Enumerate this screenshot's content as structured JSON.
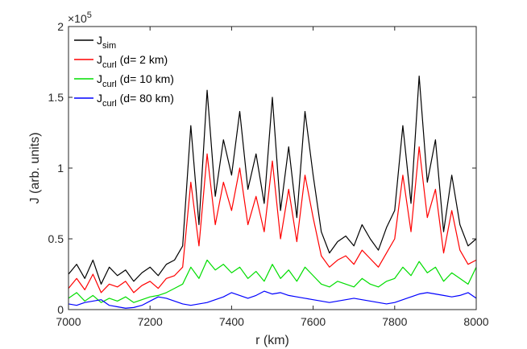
{
  "chart_data": {
    "type": "line",
    "title": "",
    "xlabel": "r (km)",
    "ylabel": "J (arb. units)",
    "xlim": [
      7000,
      8000
    ],
    "ylim": [
      0,
      200000
    ],
    "y_multiplier_label": "×10",
    "y_multiplier_exp": "5",
    "xticks": [
      7000,
      7200,
      7400,
      7600,
      7800,
      8000
    ],
    "xtick_labels": [
      "7000",
      "7200",
      "7400",
      "7600",
      "7800",
      "8000"
    ],
    "yticks": [
      0,
      50000,
      100000,
      150000,
      200000
    ],
    "ytick_labels": [
      "0",
      "0.5",
      "1",
      "1.5",
      "2"
    ],
    "grid": false,
    "legend_position": "top-left",
    "x": [
      7000,
      7020,
      7040,
      7060,
      7080,
      7100,
      7120,
      7140,
      7160,
      7180,
      7200,
      7220,
      7240,
      7260,
      7280,
      7300,
      7320,
      7340,
      7360,
      7380,
      7400,
      7420,
      7440,
      7460,
      7480,
      7500,
      7520,
      7540,
      7560,
      7580,
      7600,
      7620,
      7640,
      7660,
      7680,
      7700,
      7720,
      7740,
      7760,
      7780,
      7800,
      7820,
      7840,
      7860,
      7880,
      7900,
      7920,
      7940,
      7960,
      7980,
      8000
    ],
    "series": [
      {
        "name": "sim",
        "legend_main": "J",
        "legend_sub": "sim",
        "legend_tail": "",
        "color": "#000000",
        "values": [
          25000,
          32000,
          22000,
          35000,
          18000,
          30000,
          24000,
          28000,
          20000,
          26000,
          30000,
          24000,
          32000,
          35000,
          45000,
          130000,
          60000,
          155000,
          80000,
          120000,
          95000,
          140000,
          85000,
          110000,
          75000,
          150000,
          70000,
          115000,
          65000,
          140000,
          95000,
          55000,
          40000,
          48000,
          52000,
          45000,
          60000,
          50000,
          42000,
          58000,
          70000,
          130000,
          75000,
          165000,
          90000,
          120000,
          55000,
          95000,
          60000,
          45000,
          50000
        ]
      },
      {
        "name": "curl d=2 km",
        "legend_main": "J",
        "legend_sub": "curl",
        "legend_tail": " (d= 2 km)",
        "color": "#ff0000",
        "values": [
          15000,
          22000,
          14000,
          25000,
          12000,
          18000,
          16000,
          20000,
          12000,
          17000,
          20000,
          15000,
          22000,
          24000,
          30000,
          90000,
          45000,
          110000,
          60000,
          90000,
          70000,
          100000,
          60000,
          80000,
          55000,
          105000,
          50000,
          85000,
          48000,
          95000,
          65000,
          38000,
          30000,
          35000,
          38000,
          32000,
          42000,
          36000,
          30000,
          40000,
          50000,
          95000,
          55000,
          115000,
          65000,
          85000,
          40000,
          70000,
          42000,
          32000,
          35000
        ]
      },
      {
        "name": "curl d=10 km",
        "legend_main": "J",
        "legend_sub": "curl",
        "legend_tail": " (d= 10 km)",
        "color": "#00dd00",
        "values": [
          8000,
          12000,
          6000,
          10000,
          5000,
          8000,
          6000,
          9000,
          5000,
          7000,
          9000,
          10000,
          12000,
          15000,
          18000,
          30000,
          22000,
          35000,
          28000,
          32000,
          26000,
          30000,
          22000,
          27000,
          20000,
          32000,
          22000,
          28000,
          20000,
          30000,
          24000,
          18000,
          16000,
          20000,
          18000,
          16000,
          22000,
          18000,
          16000,
          20000,
          22000,
          30000,
          24000,
          34000,
          26000,
          30000,
          20000,
          26000,
          22000,
          18000,
          30000
        ]
      },
      {
        "name": "curl d=80 km",
        "legend_main": "J",
        "legend_sub": "curl",
        "legend_tail": " (d= 80 km)",
        "color": "#0000ff",
        "values": [
          4000,
          3000,
          5000,
          6000,
          7000,
          3000,
          2000,
          1000,
          1500,
          3000,
          6000,
          9000,
          8000,
          6000,
          4000,
          3000,
          4000,
          5000,
          7000,
          9000,
          12000,
          10000,
          8000,
          10000,
          13000,
          11000,
          12000,
          10000,
          9000,
          8000,
          7000,
          6000,
          5000,
          6000,
          7000,
          8000,
          7000,
          6000,
          5000,
          4000,
          5000,
          7000,
          9000,
          11000,
          12000,
          11000,
          10000,
          9000,
          10000,
          12000,
          8000
        ]
      }
    ]
  }
}
